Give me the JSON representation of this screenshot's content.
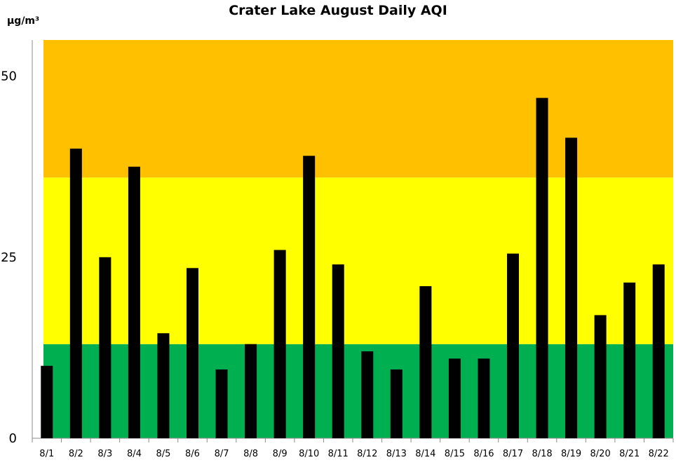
{
  "chart_data": {
    "type": "bar",
    "title": "Crater Lake August Daily AQI",
    "ylabel": "µg/m³",
    "xlabel": "",
    "ylim": [
      0,
      55
    ],
    "yticks": [
      "0",
      "25",
      "50"
    ],
    "categories": [
      "8/1",
      "8/2",
      "8/3",
      "8/4",
      "8/5",
      "8/6",
      "8/7",
      "8/8",
      "8/9",
      "8/10",
      "8/11",
      "8/12",
      "8/13",
      "8/14",
      "8/15",
      "8/16",
      "8/17",
      "8/18",
      "8/19",
      "8/20",
      "8/21",
      "8/22"
    ],
    "values": [
      10,
      40,
      25,
      37.5,
      14.5,
      23.5,
      9.5,
      13,
      26,
      39,
      24,
      12,
      9.5,
      21,
      11,
      11,
      25.5,
      47,
      41.5,
      17,
      21.5,
      24
    ],
    "bar_color": "#000000",
    "bands": [
      {
        "from": 0,
        "to": 13,
        "color": "#00b050"
      },
      {
        "from": 13,
        "to": 36,
        "color": "#ffff00"
      },
      {
        "from": 36,
        "to": 55,
        "color": "#ffc000"
      }
    ],
    "grid": false,
    "legend": "none"
  }
}
